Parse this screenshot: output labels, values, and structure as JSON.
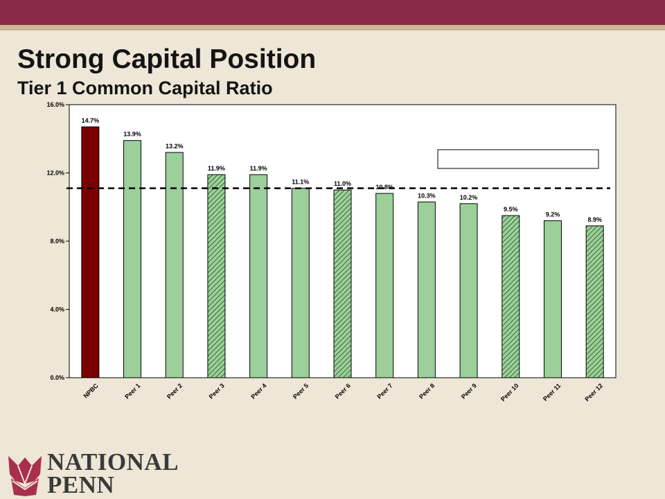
{
  "slide": {
    "title": "Strong Capital Position",
    "subtitle": "Tier 1 Common Capital Ratio"
  },
  "brand": {
    "name_line1": "NATIONAL",
    "name_line2": "PENN",
    "colors": {
      "primary": "#8b2a46",
      "accent": "#cbb898",
      "logo_petal": "#a8304d"
    }
  },
  "chart_data": {
    "type": "bar",
    "title": "",
    "xlabel": "",
    "ylabel": "",
    "ylim": [
      0,
      16
    ],
    "yticks": [
      "0.0%",
      "4.0%",
      "8.0%",
      "12.0%",
      "16.0%"
    ],
    "ytick_values": [
      0,
      4,
      8,
      12,
      16
    ],
    "categories": [
      "NPBC",
      "Peer 1",
      "Peer 2",
      "Peer 3",
      "Peer 4",
      "Peer 5",
      "Peer 6",
      "Peer 7",
      "Peer 8",
      "Peer 9",
      "Peer 10",
      "Peer 11",
      "Peer 12"
    ],
    "values": [
      14.7,
      13.9,
      13.2,
      11.9,
      11.9,
      11.1,
      11.0,
      10.8,
      10.3,
      10.2,
      9.5,
      9.2,
      8.9
    ],
    "value_labels": [
      "14.7%",
      "13.9%",
      "13.2%",
      "11.9%",
      "11.9%",
      "11.1%",
      "11.0%",
      "10.8%",
      "10.3%",
      "10.2%",
      "9.5%",
      "9.2%",
      "8.9%"
    ],
    "bar_style": [
      "highlight",
      "solid",
      "solid",
      "hatched",
      "solid",
      "solid",
      "hatched",
      "solid",
      "solid",
      "solid",
      "hatched",
      "solid",
      "hatched"
    ],
    "reference_line": {
      "value": 11.1,
      "style": "dashed"
    },
    "legend": {
      "position": "top-right",
      "entries": []
    },
    "colors": {
      "highlight": "#7a0000",
      "peer": "#9ccf9a",
      "hatch": "#1d4f1d"
    },
    "grid": false
  }
}
